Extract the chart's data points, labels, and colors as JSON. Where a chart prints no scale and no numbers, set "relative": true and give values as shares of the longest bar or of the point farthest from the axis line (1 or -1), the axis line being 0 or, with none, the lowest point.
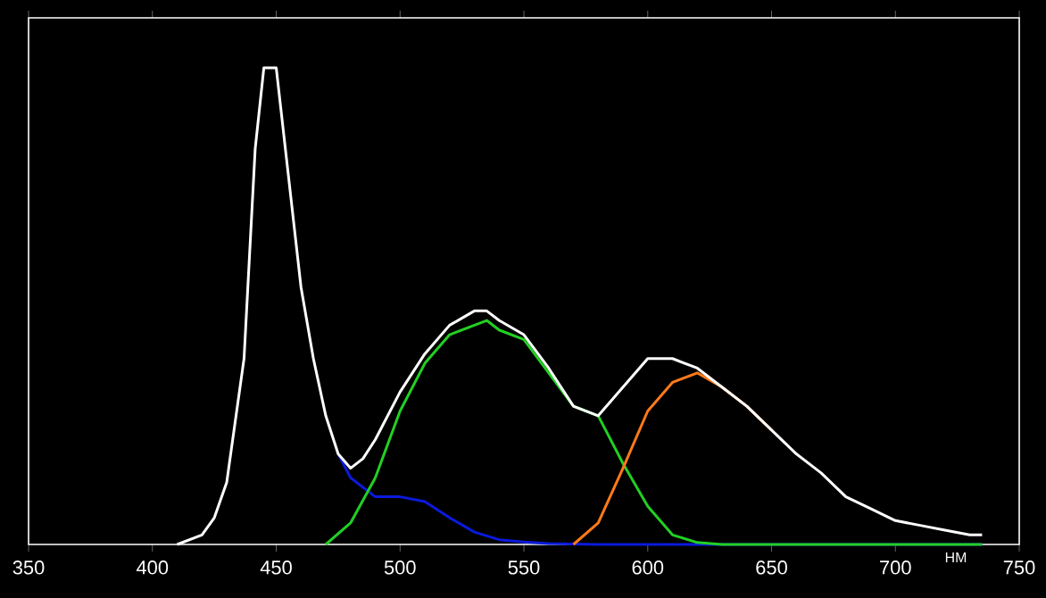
{
  "chart_data": {
    "type": "line",
    "relative": true,
    "xlabel": "НМ",
    "xlim": [
      350,
      750
    ],
    "xticks": [
      350,
      400,
      450,
      500,
      550,
      600,
      650,
      700,
      750
    ],
    "tick_labels": "x",
    "series": [
      {
        "color": "#0a1adb",
        "x": [
          475,
          480,
          490,
          500,
          510,
          520,
          530,
          540,
          550,
          560,
          580,
          600,
          650,
          700,
          735
        ],
        "values": [
          0.19,
          0.14,
          0.1,
          0.1,
          0.09,
          0.056,
          0.026,
          0.01,
          0.005,
          0.002,
          0,
          0,
          0,
          0,
          0
        ]
      },
      {
        "color": "#22d022",
        "x": [
          470,
          480,
          490,
          500,
          510,
          520,
          530,
          535,
          540,
          550,
          560,
          570,
          580,
          590,
          600,
          610,
          620,
          630,
          735
        ],
        "values": [
          0,
          0.045,
          0.14,
          0.28,
          0.38,
          0.44,
          0.46,
          0.47,
          0.45,
          0.43,
          0.36,
          0.29,
          0.27,
          0.17,
          0.08,
          0.02,
          0.004,
          0,
          0
        ]
      },
      {
        "color": "#ff7a1a",
        "x": [
          570,
          580,
          590,
          600,
          610,
          620,
          630,
          640,
          650
        ],
        "values": [
          0,
          0.045,
          0.16,
          0.28,
          0.34,
          0.36,
          0.33,
          0.29,
          0.24
        ]
      },
      {
        "color": "#ffffff",
        "x": [
          410,
          420,
          425,
          430,
          437,
          441.5,
          445,
          450,
          455,
          460,
          465,
          470,
          475,
          480,
          485,
          490,
          500,
          510,
          520,
          530,
          535,
          540,
          550,
          560,
          570,
          580,
          585,
          590,
          600,
          610,
          620,
          630,
          640,
          650,
          660,
          670,
          680,
          690,
          700,
          710,
          720,
          730,
          735
        ],
        "values": [
          0,
          0.02,
          0.056,
          0.13,
          0.39,
          0.83,
          1.0,
          1.0,
          0.77,
          0.54,
          0.39,
          0.27,
          0.19,
          0.16,
          0.18,
          0.22,
          0.32,
          0.4,
          0.46,
          0.49,
          0.49,
          0.47,
          0.44,
          0.37,
          0.29,
          0.27,
          0.3,
          0.33,
          0.39,
          0.39,
          0.37,
          0.33,
          0.29,
          0.24,
          0.19,
          0.15,
          0.1,
          0.075,
          0.05,
          0.04,
          0.03,
          0.02,
          0.02
        ]
      }
    ]
  }
}
